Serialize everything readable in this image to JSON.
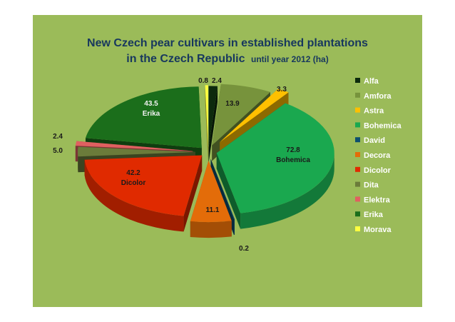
{
  "chart_data": {
    "type": "pie",
    "title_line1": "New Czech pear cultivars in established plantations",
    "title_line2_bold": "in the Czech Republic",
    "title_line2_rest": "until year 2012 (ha)",
    "legend_position": "right",
    "slices": [
      {
        "name": "Alfa",
        "value": 2.4,
        "label": "2.4",
        "color": "#0d2a0d"
      },
      {
        "name": "Amfora",
        "value": 13.9,
        "label": "13.9",
        "color": "#77933c"
      },
      {
        "name": "Astra",
        "value": 3.3,
        "label": "3.3",
        "color": "#ffc000"
      },
      {
        "name": "Bohemica",
        "value": 72.8,
        "label": "72.8",
        "sublabel": "Bohemica",
        "color": "#1aa84f"
      },
      {
        "name": "David",
        "value": 0.2,
        "label": "0.2",
        "color": "#0d4f6e"
      },
      {
        "name": "Decora",
        "value": 11.1,
        "label": "11.1",
        "color": "#e36c09"
      },
      {
        "name": "Dicolor",
        "value": 42.2,
        "label": "42.2",
        "sublabel": "Dicolor",
        "color": "#e02a00"
      },
      {
        "name": "Dita",
        "value": 5.0,
        "label": "5.0",
        "color": "#6b7b3a"
      },
      {
        "name": "Elektra",
        "value": 2.4,
        "label": "2.4",
        "color": "#e06060"
      },
      {
        "name": "Erika",
        "value": 43.5,
        "label": "43.5",
        "sublabel": "Erika",
        "color": "#1b6e1b"
      },
      {
        "name": "Morava",
        "value": 0.8,
        "label": "0.8",
        "color": "#ffff40"
      }
    ]
  }
}
